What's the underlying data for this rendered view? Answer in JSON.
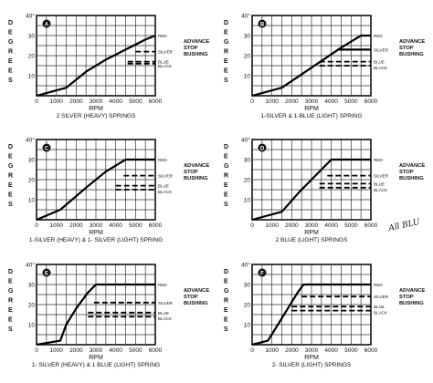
{
  "chart_data": [
    {
      "type": "line",
      "badge": "A",
      "ylabel": "DEGREES",
      "xlabel": "RPM",
      "xlim": [
        0,
        6000
      ],
      "ylim": [
        0,
        40
      ],
      "xticks": [
        "0",
        "1000",
        "2000",
        "3000",
        "4000",
        "5000",
        "6000"
      ],
      "yticks": [
        "",
        "10",
        "20",
        "30",
        "40°"
      ],
      "caption": "2 SILVER (HEAVY) SPRINGS",
      "annotation": [
        "ADVANCE",
        "STOP",
        "BUSHING"
      ],
      "series": [
        {
          "name": "RED",
          "style": "solid",
          "x": [
            0,
            1500,
            2500,
            3500,
            4500,
            5500,
            6000
          ],
          "y": [
            0,
            4,
            12,
            18,
            23,
            28,
            30
          ]
        },
        {
          "name": "SILVER",
          "style": "dashed",
          "x": [
            5000,
            6000
          ],
          "y": [
            22,
            22
          ]
        },
        {
          "name": "BLUE",
          "style": "dashed",
          "x": [
            4600,
            6000
          ],
          "y": [
            17,
            17
          ]
        },
        {
          "name": "BLACK",
          "style": "dashed",
          "x": [
            4600,
            6000
          ],
          "y": [
            16,
            16
          ]
        }
      ],
      "series_labels": [
        "RED",
        "SILVER",
        "BLUE",
        "BLACK"
      ]
    },
    {
      "type": "line",
      "badge": "B",
      "ylabel": "DEGREES",
      "xlabel": "RPM",
      "xlim": [
        0,
        6000
      ],
      "ylim": [
        0,
        40
      ],
      "xticks": [
        "0",
        "1000",
        "2000",
        "3000",
        "4000",
        "5000",
        "6000"
      ],
      "yticks": [
        "",
        "10",
        "20",
        "30",
        "40°"
      ],
      "caption": "1-SILVER & 1-BLUE (LIGHT) SPRING",
      "annotation": [
        "ADVANCE",
        "STOP",
        "BUSHING"
      ],
      "series": [
        {
          "name": "RED",
          "style": "solid",
          "x": [
            0,
            1500,
            3000,
            4500,
            5500,
            6000
          ],
          "y": [
            0,
            4,
            14,
            24,
            30,
            30
          ]
        },
        {
          "name": "SILVER",
          "style": "solid",
          "x": [
            4300,
            6000
          ],
          "y": [
            23,
            23
          ]
        },
        {
          "name": "BLUE",
          "style": "dashed",
          "x": [
            3400,
            6000
          ],
          "y": [
            17,
            17
          ]
        },
        {
          "name": "BLACK",
          "style": "dashed",
          "x": [
            3400,
            6000
          ],
          "y": [
            15,
            15
          ]
        }
      ],
      "series_labels": [
        "RED",
        "SILVER",
        "BLUE",
        "BLACK"
      ]
    },
    {
      "type": "line",
      "badge": "C",
      "ylabel": "DEGREES",
      "xlabel": "RPM",
      "xlim": [
        0,
        6000
      ],
      "ylim": [
        0,
        40
      ],
      "xticks": [
        "0",
        "1000",
        "2000",
        "3000",
        "4000",
        "5000",
        "6000"
      ],
      "yticks": [
        "",
        "10",
        "20",
        "30",
        "40°"
      ],
      "caption": "1-SILVER (HEAVY) & 1- SILVER (LIGHT) SPRING",
      "annotation": [
        "ADVANCE",
        "STOP",
        "BUSHING"
      ],
      "series": [
        {
          "name": "RED",
          "style": "solid",
          "x": [
            0,
            1200,
            2500,
            3500,
            4500,
            6000
          ],
          "y": [
            0,
            5,
            16,
            24,
            30,
            30
          ]
        },
        {
          "name": "SILVER",
          "style": "dashed",
          "x": [
            4400,
            6000
          ],
          "y": [
            22,
            22
          ]
        },
        {
          "name": "BLUE",
          "style": "dashed",
          "x": [
            4000,
            6000
          ],
          "y": [
            17,
            17
          ]
        },
        {
          "name": "BLACK",
          "style": "dashed",
          "x": [
            4000,
            6000
          ],
          "y": [
            15,
            15
          ]
        }
      ],
      "series_labels": [
        "RED",
        "SILVER",
        "BLUE",
        "BLACK"
      ]
    },
    {
      "type": "line",
      "badge": "D",
      "ylabel": "DEGREES",
      "xlabel": "RPM",
      "xlim": [
        0,
        6000
      ],
      "ylim": [
        0,
        40
      ],
      "xticks": [
        "0",
        "1000",
        "2000",
        "3000",
        "4000",
        "5000",
        "6000"
      ],
      "yticks": [
        "",
        "10",
        "20",
        "30",
        "40°"
      ],
      "caption": "2 BLUE (LIGHT) SPRINGS",
      "annotation": [
        "ADVANCE",
        "STOP",
        "BUSHING"
      ],
      "series": [
        {
          "name": "RED",
          "style": "solid",
          "x": [
            0,
            1500,
            2400,
            3200,
            4000,
            6000
          ],
          "y": [
            0,
            4,
            14,
            22,
            30,
            30
          ]
        },
        {
          "name": "SILVER",
          "style": "dashed",
          "x": [
            3800,
            6000
          ],
          "y": [
            22,
            22
          ]
        },
        {
          "name": "BLUE",
          "style": "dashed",
          "x": [
            3400,
            6000
          ],
          "y": [
            18,
            18
          ]
        },
        {
          "name": "BLACK",
          "style": "dashed",
          "x": [
            3400,
            6000
          ],
          "y": [
            16,
            16
          ]
        }
      ],
      "series_labels": [
        "RED",
        "SILVER",
        "BLUE",
        "BLACK"
      ],
      "handwriting": "All BLU"
    },
    {
      "type": "line",
      "badge": "E",
      "ylabel": "DEGREES",
      "xlabel": "RPM",
      "xlim": [
        0,
        6000
      ],
      "ylim": [
        0,
        40
      ],
      "xticks": [
        "0",
        "1000",
        "2000",
        "3000",
        "4000",
        "5000",
        "6000"
      ],
      "yticks": [
        "",
        "10",
        "20",
        "30",
        "40°"
      ],
      "caption": "1- SILVER (HEAVY) & 1 BLUE (LIGHT) SPRING",
      "annotation": [
        "ADVANCE",
        "STOP",
        "BUSHING"
      ],
      "series": [
        {
          "name": "RED",
          "style": "solid",
          "x": [
            0,
            1200,
            1500,
            2000,
            2600,
            3000,
            6000
          ],
          "y": [
            0,
            2,
            10,
            18,
            26,
            30,
            30
          ]
        },
        {
          "name": "SILVER",
          "style": "dashed",
          "x": [
            2900,
            6000
          ],
          "y": [
            21,
            21
          ]
        },
        {
          "name": "BLUE",
          "style": "dashed",
          "x": [
            2600,
            6000
          ],
          "y": [
            16,
            16
          ]
        },
        {
          "name": "BLACK",
          "style": "dashed",
          "x": [
            2600,
            6000
          ],
          "y": [
            14,
            14
          ]
        }
      ],
      "series_labels": [
        "RED",
        "SILVER",
        "BLUE",
        "BLACK"
      ]
    },
    {
      "type": "line",
      "badge": "F",
      "ylabel": "DEGREES",
      "xlabel": "RPM",
      "xlim": [
        0,
        6000
      ],
      "ylim": [
        0,
        40
      ],
      "xticks": [
        "0",
        "1000",
        "2000",
        "3000",
        "4000",
        "5000",
        "6000"
      ],
      "yticks": [
        "",
        "10",
        "20",
        "30",
        "40°"
      ],
      "caption": "2- SILVER (LIGHT) SPRINGS",
      "annotation": [
        "ADVANCE",
        "STOP",
        "BUSHING"
      ],
      "series": [
        {
          "name": "RED",
          "style": "solid",
          "x": [
            0,
            800,
            1300,
            1800,
            2300,
            2600,
            6000
          ],
          "y": [
            0,
            2,
            10,
            18,
            26,
            30,
            30
          ]
        },
        {
          "name": "SILVER",
          "style": "dashed",
          "x": [
            2500,
            6000
          ],
          "y": [
            24,
            24
          ]
        },
        {
          "name": "BLUE",
          "style": "dashed",
          "x": [
            2000,
            6000
          ],
          "y": [
            19,
            19
          ]
        },
        {
          "name": "BLACK",
          "style": "dashed",
          "x": [
            2000,
            6000
          ],
          "y": [
            17,
            17
          ]
        }
      ],
      "series_labels": [
        "RED",
        "SILVER",
        "BLUE",
        "BLACK"
      ]
    }
  ]
}
